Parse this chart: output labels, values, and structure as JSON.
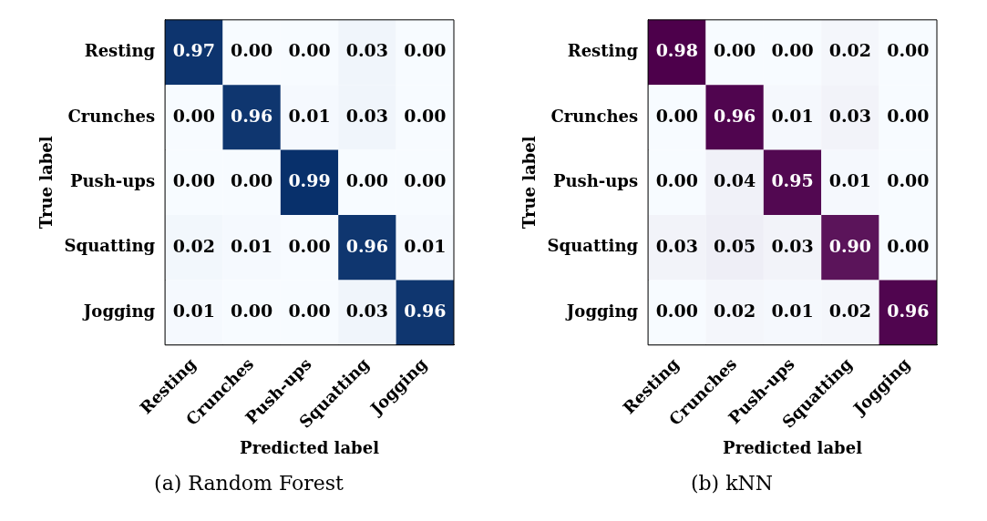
{
  "chart_data": [
    {
      "type": "heatmap",
      "xlabel": "Predicted label",
      "ylabel": "True label",
      "annotations": [
        "(a) Random Forest"
      ],
      "color": "#08306b",
      "categories": [
        "Resting",
        "Crunches",
        "Push-ups",
        "Squatting",
        "Jogging"
      ],
      "y_categories": [
        "Resting",
        "Crunches",
        "Push-ups",
        "Squatting",
        "Jogging"
      ],
      "cells": [
        [
          0.97,
          0,
          0,
          0.03,
          0
        ],
        [
          0,
          0.96,
          0.01,
          0.03,
          0
        ],
        [
          0,
          0,
          0.99,
          0,
          0
        ],
        [
          0.02,
          0.01,
          0,
          0.96,
          0.01
        ],
        [
          0.01,
          0,
          0,
          0.03,
          0.96
        ]
      ],
      "cell_labels": [
        [
          "0.97",
          "0.00",
          "0.00",
          "0.03",
          "0.00"
        ],
        [
          "0.00",
          "0.96",
          "0.01",
          "0.03",
          "0.00"
        ],
        [
          "0.00",
          "0.00",
          "0.99",
          "0.00",
          "0.00"
        ],
        [
          "0.02",
          "0.01",
          "0.00",
          "0.96",
          "0.01"
        ],
        [
          "0.01",
          "0.00",
          "0.00",
          "0.03",
          "0.96"
        ]
      ]
    },
    {
      "type": "heatmap",
      "xlabel": "Predicted label",
      "ylabel": "True label",
      "annotations": [
        "(b) kNN"
      ],
      "color": "#4d004b",
      "categories": [
        "Resting",
        "Crunches",
        "Push-ups",
        "Squatting",
        "Jogging"
      ],
      "y_categories": [
        "Resting",
        "Crunches",
        "Push-ups",
        "Squatting",
        "Jogging"
      ],
      "cells": [
        [
          0.98,
          0,
          0,
          0.02,
          0
        ],
        [
          0,
          0.96,
          0.01,
          0.03,
          0
        ],
        [
          0,
          0.04,
          0.95,
          0.01,
          0
        ],
        [
          0.03,
          0.05,
          0.03,
          0.9,
          0
        ],
        [
          0,
          0.02,
          0.01,
          0.02,
          0.96
        ]
      ],
      "cell_labels": [
        [
          "0.98",
          "0.00",
          "0.00",
          "0.02",
          "0.00"
        ],
        [
          "0.00",
          "0.96",
          "0.01",
          "0.03",
          "0.00"
        ],
        [
          "0.00",
          "0.04",
          "0.95",
          "0.01",
          "0.00"
        ],
        [
          "0.03",
          "0.05",
          "0.03",
          "0.90",
          "0.00"
        ],
        [
          "0.00",
          "0.02",
          "0.01",
          "0.02",
          "0.96"
        ]
      ]
    }
  ]
}
